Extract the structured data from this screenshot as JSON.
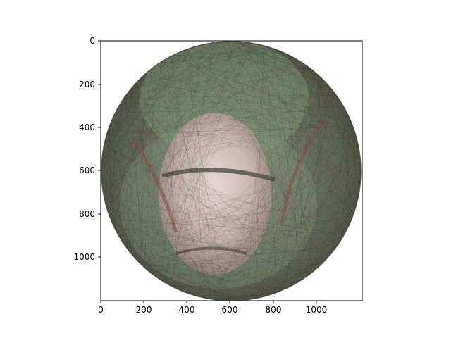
{
  "figure": {
    "background": "#ffffff",
    "axes_frame_color": "#000000",
    "x_ticks": [
      "0",
      "200",
      "400",
      "600",
      "800",
      "1000"
    ],
    "y_ticks": [
      "0",
      "200",
      "400",
      "600",
      "800",
      "1000"
    ],
    "x_tick_values": [
      0,
      200,
      400,
      600,
      800,
      1000
    ],
    "y_tick_values": [
      0,
      200,
      400,
      600,
      800,
      1000
    ],
    "xlim": [
      0,
      1200
    ],
    "ylim_inverted": [
      1200,
      0
    ]
  },
  "image": {
    "subject": "string-art-portrait",
    "colors": {
      "thread_dark": "#2e3528",
      "thread_green": "#5f7a55",
      "thread_red": "#8a4a45",
      "face_light": "#e8d8d6",
      "circle_edge": "#3a3a36"
    }
  }
}
